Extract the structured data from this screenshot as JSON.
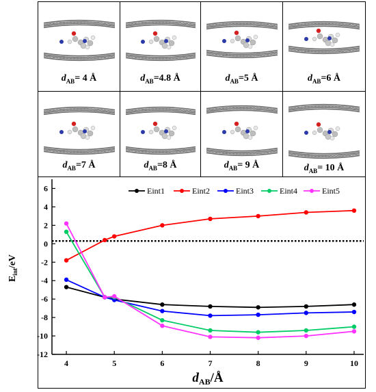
{
  "panels": [
    {
      "label_prefix": "d",
      "label_sub": "AB",
      "label_value": "= 4 Å"
    },
    {
      "label_prefix": "d",
      "label_sub": "AB",
      "label_value": "=4.8 Å"
    },
    {
      "label_prefix": "d",
      "label_sub": "AB",
      "label_value": "=5 Å"
    },
    {
      "label_prefix": "d",
      "label_sub": "AB",
      "label_value": "=6 Å"
    },
    {
      "label_prefix": "d",
      "label_sub": "AB",
      "label_value": "=7 Å"
    },
    {
      "label_prefix": "d",
      "label_sub": "AB",
      "label_value": "=8 Å"
    },
    {
      "label_prefix": "d",
      "label_sub": "AB",
      "label_value": "= 9 Å"
    },
    {
      "label_prefix": "d",
      "label_sub": "AB",
      "label_value": "= 10 Å"
    }
  ],
  "chart_data": {
    "type": "line",
    "xlabel": "d",
    "xlabel_sub": "AB",
    "xlabel_unit": "/Å",
    "ylabel": "E",
    "ylabel_sub": "int",
    "ylabel_unit": "/eV",
    "xlim": [
      3.7,
      10.2
    ],
    "ylim": [
      -12,
      7
    ],
    "x_ticks": [
      4,
      5,
      6,
      7,
      8,
      9,
      10
    ],
    "y_ticks": [
      -12,
      -10,
      -8,
      -6,
      -4,
      -2,
      0,
      2,
      4,
      6
    ],
    "reference_line": 0.3,
    "legend_position": "top-right",
    "series": [
      {
        "name": "Eint1",
        "color": "#000000",
        "x": [
          4,
          4.8,
          5,
          6,
          7,
          8,
          9,
          10
        ],
        "y": [
          -4.7,
          -5.8,
          -6.0,
          -6.6,
          -6.8,
          -6.9,
          -6.8,
          -6.6
        ]
      },
      {
        "name": "Eint2",
        "color": "#ff0000",
        "x": [
          4,
          4.8,
          5,
          6,
          7,
          8,
          9,
          10
        ],
        "y": [
          -1.8,
          0.4,
          0.8,
          2.0,
          2.7,
          3.0,
          3.4,
          3.6
        ]
      },
      {
        "name": "Eint3",
        "color": "#0000ff",
        "x": [
          4,
          4.8,
          5,
          6,
          7,
          8,
          9,
          10
        ],
        "y": [
          -3.9,
          -5.8,
          -6.1,
          -7.3,
          -7.8,
          -7.7,
          -7.5,
          -7.4
        ]
      },
      {
        "name": "Eint4",
        "color": "#00cc66",
        "x": [
          4,
          4.8,
          5,
          6,
          7,
          8,
          9,
          10
        ],
        "y": [
          1.3,
          -5.8,
          -5.8,
          -8.3,
          -9.4,
          -9.6,
          -9.4,
          -9.0
        ]
      },
      {
        "name": "Eint5",
        "color": "#ff33ff",
        "x": [
          4,
          4.8,
          5,
          6,
          7,
          8,
          9,
          10
        ],
        "y": [
          2.2,
          -5.8,
          -5.7,
          -8.9,
          -10.1,
          -10.2,
          -10.0,
          -9.5
        ]
      }
    ]
  }
}
